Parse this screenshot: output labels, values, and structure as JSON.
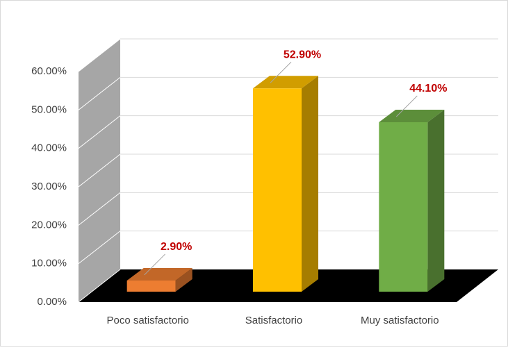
{
  "chart_data": {
    "type": "bar3d",
    "categories": [
      "Poco satisfactorio",
      "Satisfactorio",
      "Muy satisfactorio"
    ],
    "values": [
      2.9,
      52.9,
      44.1
    ],
    "value_labels": [
      "2.90%",
      "52.90%",
      "44.10%"
    ],
    "colors": [
      "#ed7d31",
      "#ffc000",
      "#70ad47"
    ],
    "ylim": [
      0,
      60
    ],
    "yticks": [
      {
        "value": 0,
        "label": "0.00%"
      },
      {
        "value": 10,
        "label": "10.00%"
      },
      {
        "value": 20,
        "label": "20.00%"
      },
      {
        "value": 30,
        "label": "30.00%"
      },
      {
        "value": 40,
        "label": "40.00%"
      },
      {
        "value": 50,
        "label": "50.00%"
      },
      {
        "value": 60,
        "label": "60.00%"
      }
    ],
    "grid": true
  }
}
